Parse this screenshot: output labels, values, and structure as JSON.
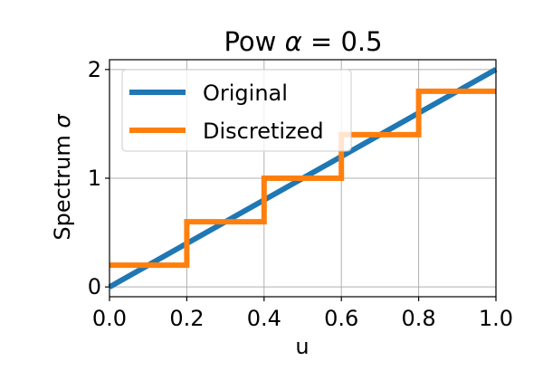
{
  "chart_data": {
    "type": "line",
    "title_prefix": "Pow ",
    "title_symbol": "α",
    "title_suffix": " = 0.5",
    "xlabel": "u",
    "ylabel_prefix": "Spectrum ",
    "ylabel_symbol": "σ",
    "xlim": [
      0,
      1
    ],
    "ylim": [
      -0.09,
      2.09
    ],
    "xticks": [
      0,
      0.2,
      0.4,
      0.6,
      0.8,
      1.0
    ],
    "xtick_labels": [
      "0.0",
      "0.2",
      "0.4",
      "0.6",
      "0.8",
      "1.0"
    ],
    "yticks": [
      0,
      1,
      2
    ],
    "ytick_labels": [
      "0",
      "1",
      "2"
    ],
    "grid": true,
    "legend_position": "upper-left",
    "series": [
      {
        "name": "Original",
        "color": "#1f77b4",
        "style": "line",
        "x": [
          0,
          1
        ],
        "y": [
          0,
          2
        ]
      },
      {
        "name": "Discretized",
        "color": "#ff7f0e",
        "style": "step",
        "x": [
          0,
          0.2,
          0.2,
          0.4,
          0.4,
          0.6,
          0.6,
          0.8,
          0.8,
          1.0
        ],
        "y": [
          0.2,
          0.2,
          0.6,
          0.6,
          1.0,
          1.0,
          1.4,
          1.4,
          1.8,
          1.8
        ]
      }
    ]
  }
}
